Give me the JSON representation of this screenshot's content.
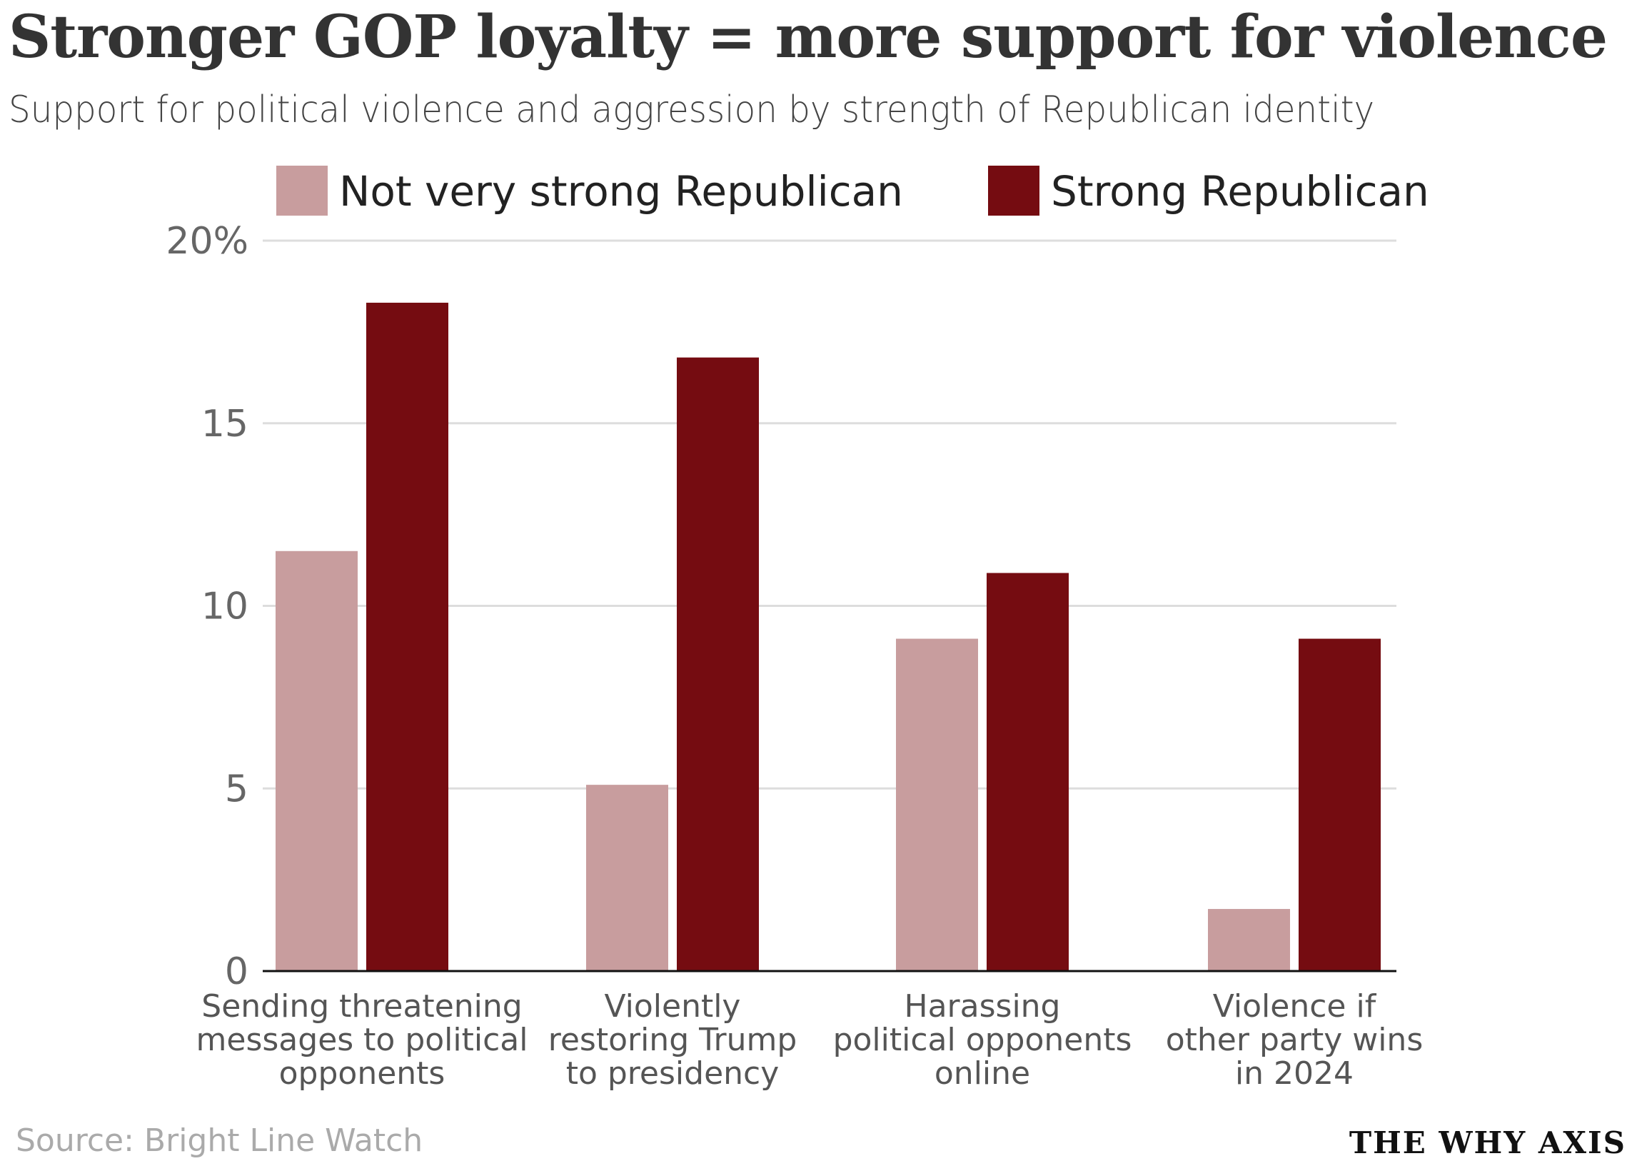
{
  "title": "Stronger GOP loyalty = more support for violence",
  "subtitle": "Support for political violence and aggression by strength of Republican identity",
  "source": "Source: Bright Line Watch",
  "logo": "THE WHY AXIS",
  "chart_data": {
    "type": "bar",
    "title": "Stronger GOP loyalty = more support for violence",
    "xlabel": "",
    "ylabel": "",
    "ylim": [
      0,
      20
    ],
    "yticks": [
      0,
      5,
      10,
      15,
      20
    ],
    "ytick_labels": [
      "0",
      "5",
      "10",
      "15",
      "20%"
    ],
    "grid": true,
    "legend_position": "top",
    "categories": [
      [
        "Sending threatening",
        "messages to political",
        "opponents"
      ],
      [
        "Violently",
        "restoring Trump",
        "to presidency"
      ],
      [
        "Harassing",
        "political opponents",
        "online"
      ],
      [
        "Violence if",
        "other party wins",
        "in 2024"
      ]
    ],
    "series": [
      {
        "name": "Not very strong Republican",
        "color": "#c89d9e",
        "values": [
          11.5,
          5.1,
          9.1,
          1.7
        ]
      },
      {
        "name": "Strong Republican",
        "color": "#750c11",
        "values": [
          18.3,
          16.8,
          10.9,
          9.1
        ]
      }
    ]
  }
}
